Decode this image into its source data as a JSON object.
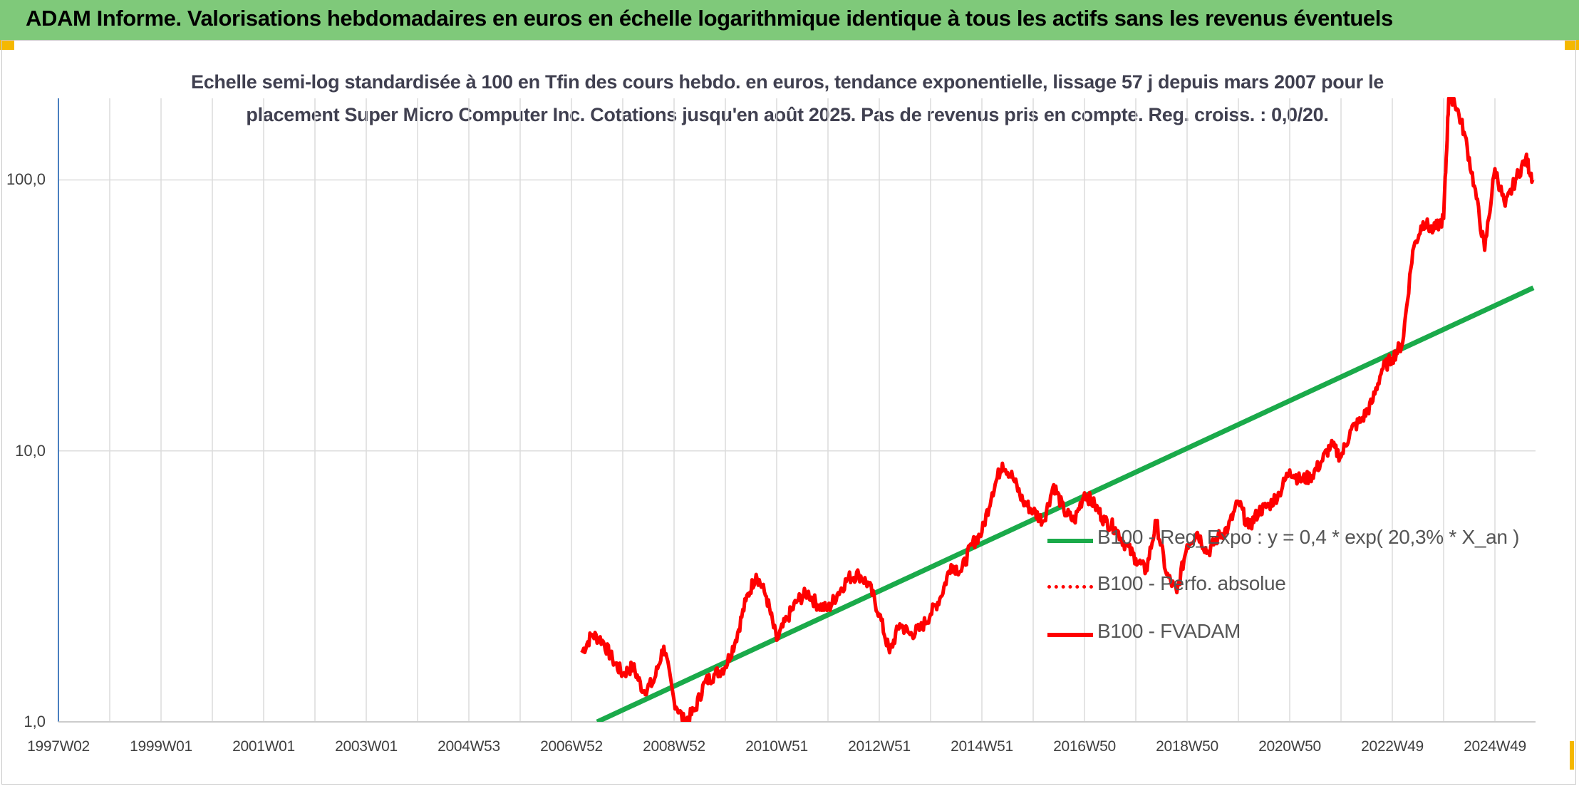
{
  "header": {
    "title": "ADAM Informe. Valorisations hebdomadaires en euros en échelle logarithmique identique à tous les actifs sans les revenus éventuels"
  },
  "colors": {
    "header_bg": "#7fc97a",
    "accent_corner": "#f5b800",
    "series_red": "#ff0000",
    "series_green": "#1aaa4a",
    "grid": "#dcdcdc"
  },
  "chart_data": {
    "type": "line",
    "title_line1": "Echelle semi-log standardisée à 100 en Tfin des cours hebdo. en euros, tendance exponentielle, lissage 57 j depuis mars 2007 pour le",
    "title_line2": "placement Super Micro Computer Inc. Cotations jusqu'en août 2025. Pas de revenus pris en compte. Reg. croiss. : 0,0/20.",
    "y_scale": "log",
    "ylim": [
      1,
      200
    ],
    "y_ticks": [
      "1,0",
      "10,0",
      "100,0"
    ],
    "y_tick_values": [
      1,
      10,
      100
    ],
    "x_ticks": [
      "1997W02",
      "1999W01",
      "2001W01",
      "2003W01",
      "2004W53",
      "2006W52",
      "2008W52",
      "2010W51",
      "2012W51",
      "2014W51",
      "2016W50",
      "2018W50",
      "2020W50",
      "2022W49",
      "2024W49"
    ],
    "x_tick_years": [
      1997.0,
      1999.0,
      2001.0,
      2003.0,
      2005.0,
      2007.0,
      2009.0,
      2011.0,
      2013.0,
      2015.0,
      2017.0,
      2019.0,
      2021.0,
      2023.0,
      2025.0
    ],
    "xlim": [
      1997.0,
      2025.75
    ],
    "grid": "vertical and horizontal",
    "legend_position": "lower-right",
    "legend": [
      {
        "label": "B100 - Reg_Expo : y = 0,4 * exp( 20,3% *  X_an )",
        "style": "solid",
        "color": "#1aaa4a"
      },
      {
        "label": "B100 - Perfo. absolue",
        "style": "dotted",
        "color": "#ff0000"
      },
      {
        "label": "B100 - FVADAM",
        "style": "solid",
        "color": "#ff0000"
      }
    ],
    "series": [
      {
        "name": "B100 - Reg_Expo : y = 0,4 * exp( 20,3% *  X_an )",
        "type": "trend",
        "x": [
          2007.5,
          2025.75
        ],
        "y": [
          1.0,
          40.0
        ]
      },
      {
        "name": "B100 - FVADAM",
        "x": [
          2007.2,
          2007.4,
          2007.6,
          2007.8,
          2008.0,
          2008.2,
          2008.4,
          2008.6,
          2008.8,
          2009.0,
          2009.2,
          2009.4,
          2009.6,
          2009.8,
          2010.0,
          2010.2,
          2010.4,
          2010.6,
          2010.8,
          2011.0,
          2011.2,
          2011.4,
          2011.6,
          2011.8,
          2012.0,
          2012.2,
          2012.4,
          2012.6,
          2012.8,
          2013.0,
          2013.2,
          2013.4,
          2013.6,
          2013.8,
          2014.0,
          2014.2,
          2014.4,
          2014.6,
          2014.8,
          2015.0,
          2015.2,
          2015.4,
          2015.6,
          2015.8,
          2016.0,
          2016.2,
          2016.4,
          2016.6,
          2016.8,
          2017.0,
          2017.2,
          2017.4,
          2017.6,
          2017.8,
          2018.0,
          2018.2,
          2018.4,
          2018.6,
          2018.8,
          2019.0,
          2019.2,
          2019.4,
          2019.6,
          2019.8,
          2020.0,
          2020.2,
          2020.4,
          2020.6,
          2020.8,
          2021.0,
          2021.2,
          2021.4,
          2021.6,
          2021.8,
          2022.0,
          2022.2,
          2022.4,
          2022.6,
          2022.8,
          2023.0,
          2023.2,
          2023.4,
          2023.6,
          2023.8,
          2024.0,
          2024.1,
          2024.2,
          2024.4,
          2024.6,
          2024.8,
          2025.0,
          2025.2,
          2025.4,
          2025.6,
          2025.75
        ],
        "y": [
          1.8,
          2.1,
          2.0,
          1.7,
          1.5,
          1.6,
          1.3,
          1.4,
          1.9,
          1.2,
          1.0,
          1.1,
          1.4,
          1.5,
          1.6,
          2.0,
          2.8,
          3.5,
          2.9,
          2.0,
          2.4,
          2.8,
          3.0,
          2.7,
          2.6,
          3.0,
          3.4,
          3.5,
          3.2,
          2.5,
          1.8,
          2.3,
          2.1,
          2.2,
          2.5,
          2.9,
          3.8,
          3.6,
          4.5,
          5.0,
          7.0,
          9.0,
          8.0,
          6.5,
          6.0,
          5.5,
          7.5,
          6.0,
          5.5,
          7.0,
          6.3,
          5.5,
          5.2,
          4.5,
          4.0,
          3.6,
          5.5,
          3.5,
          3.0,
          4.5,
          5.0,
          4.2,
          4.8,
          5.2,
          6.5,
          5.2,
          6.0,
          6.3,
          7.0,
          8.5,
          7.8,
          8.0,
          9.0,
          10.5,
          9.5,
          12.0,
          13.0,
          15.0,
          20.0,
          22.0,
          25.0,
          55.0,
          70.0,
          65.0,
          72.0,
          200.0,
          200.0,
          150.0,
          95.0,
          55.0,
          110.0,
          80.0,
          100.0,
          120.0,
          100.0
        ]
      }
    ]
  }
}
